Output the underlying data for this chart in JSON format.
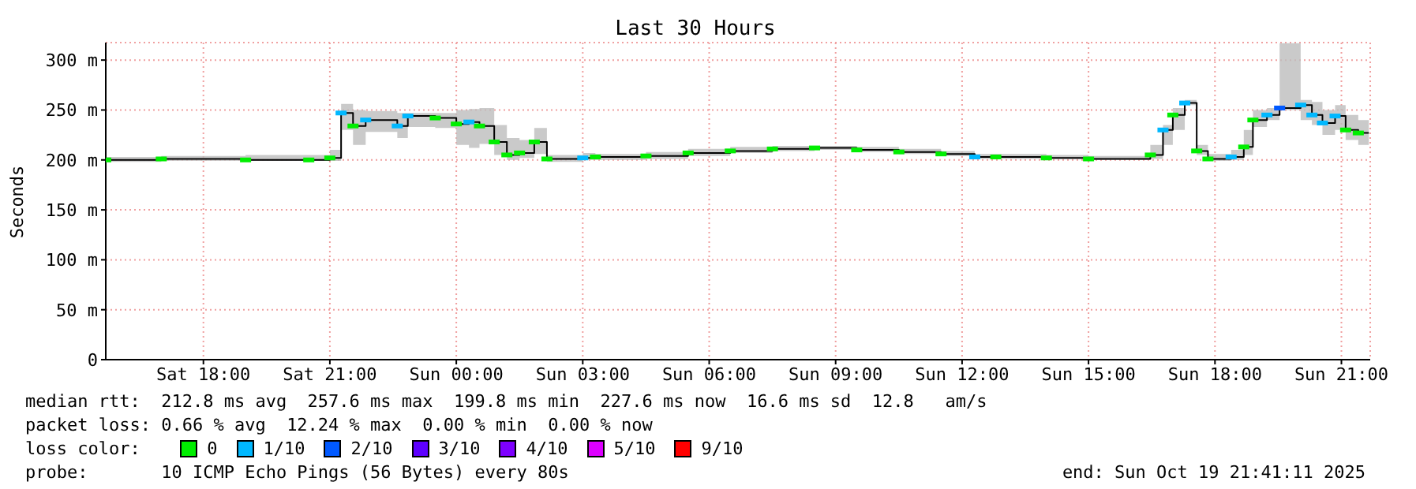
{
  "chart_data": {
    "type": "step",
    "title": "Last 30 Hours",
    "ylabel": "Seconds",
    "xlim": [
      "--10-18T15:41",
      "--10-19T21:41"
    ],
    "xticks": [
      {
        "value": "--10-18T18:00",
        "label": "Sat 18:00"
      },
      {
        "value": "--10-18T21:00",
        "label": "Sat 21:00"
      },
      {
        "value": "--10-19T00:00",
        "label": "Sun 00:00"
      },
      {
        "value": "--10-19T03:00",
        "label": "Sun 03:00"
      },
      {
        "value": "--10-19T06:00",
        "label": "Sun 06:00"
      },
      {
        "value": "--10-19T09:00",
        "label": "Sun 09:00"
      },
      {
        "value": "--10-19T12:00",
        "label": "Sun 12:00"
      },
      {
        "value": "--10-19T15:00",
        "label": "Sun 15:00"
      },
      {
        "value": "--10-19T18:00",
        "label": "Sun 18:00"
      },
      {
        "value": "--10-19T21:00",
        "label": "Sun 21:00"
      }
    ],
    "ylim": [
      0,
      317.5
    ],
    "yticks": [
      0,
      {
        "value": 50,
        "label": "50 m"
      },
      {
        "value": 100,
        "label": "100 m"
      },
      {
        "value": 150,
        "label": "150 m"
      },
      {
        "value": 200,
        "label": "200 m"
      },
      {
        "value": 250,
        "label": "250 m"
      },
      {
        "value": 300,
        "label": "300 m"
      }
    ],
    "grid": true,
    "legend": "bottom",
    "legend_title": "loss color:",
    "series": [
      {
        "color": "#000000",
        "x": [
          "--10-18T15:41",
          "--10-18T17:00",
          "--10-18T19:00",
          "--10-18T20:30",
          "--10-18T21:00",
          "--10-18T21:16",
          "--10-18T21:33",
          "--10-18T21:51",
          "--10-18T22:36",
          "--10-18T22:51",
          "--10-18T23:30",
          "--10-19T00:00",
          "--10-19T00:18",
          "--10-19T00:33",
          "--10-19T00:54",
          "--10-19T01:12",
          "--10-19T01:30",
          "--10-19T01:51",
          "--10-19T02:09",
          "--10-19T03:00",
          "--10-19T03:18",
          "--10-19T04:30",
          "--10-19T05:30",
          "--10-19T06:30",
          "--10-19T07:30",
          "--10-19T08:30",
          "--10-19T09:30",
          "--10-19T10:30",
          "--10-19T11:30",
          "--10-19T12:18",
          "--10-19T12:48",
          "--10-19T14:00",
          "--10-19T15:00",
          "--10-19T16:28",
          "--10-19T16:46",
          "--10-19T17:00",
          "--10-19T17:17",
          "--10-19T17:34",
          "--10-19T17:50",
          "--10-19T18:23",
          "--10-19T18:41",
          "--10-19T18:54",
          "--10-19T19:14",
          "--10-19T19:32",
          "--10-19T20:02",
          "--10-19T20:18",
          "--10-19T20:33",
          "--10-19T20:51",
          "--10-19T21:06",
          "--10-19T21:24",
          "--10-19T21:39"
        ],
        "values": [
          200,
          201,
          200,
          200,
          202,
          247,
          234,
          240,
          234,
          244,
          242,
          236,
          238,
          234,
          218,
          205,
          207,
          218,
          201,
          202,
          203,
          204,
          207,
          209,
          211,
          212,
          210,
          208,
          206,
          203,
          203,
          202,
          201,
          205,
          230,
          245,
          257,
          209,
          201,
          203,
          213,
          240,
          245,
          252,
          255,
          245,
          237,
          244,
          230,
          227,
          227
        ],
        "lower": [
          198,
          199,
          199,
          199,
          199,
          230,
          215,
          228,
          222,
          233,
          232,
          215,
          212,
          216,
          205,
          200,
          202,
          206,
          198,
          200,
          200,
          201,
          204,
          207,
          209,
          210,
          208,
          206,
          204,
          201,
          201,
          201,
          200,
          201,
          215,
          230,
          255,
          205,
          199,
          200,
          205,
          233,
          240,
          250,
          240,
          235,
          225,
          230,
          220,
          215,
          215
        ],
        "upper": [
          203,
          204,
          205,
          205,
          210,
          256,
          250,
          249,
          247,
          247,
          247,
          250,
          251,
          252,
          235,
          222,
          220,
          232,
          205,
          207,
          206,
          208,
          211,
          213,
          214,
          214,
          213,
          211,
          209,
          206,
          206,
          205,
          204,
          215,
          235,
          252,
          260,
          215,
          206,
          210,
          230,
          250,
          252,
          317,
          260,
          258,
          250,
          255,
          245,
          240,
          240
        ]
      },
      {
        "type": "scatter",
        "name": "0",
        "color": "#00ee00",
        "x": [
          "--10-18T15:41",
          "--10-18T17:00",
          "--10-18T19:00",
          "--10-18T20:30",
          "--10-18T21:00",
          "--10-18T21:33",
          "--10-18T23:30",
          "--10-19T00:00",
          "--10-19T00:33",
          "--10-19T00:54",
          "--10-19T01:12",
          "--10-19T01:30",
          "--10-19T01:51",
          "--10-19T02:09",
          "--10-19T03:18",
          "--10-19T04:30",
          "--10-19T05:30",
          "--10-19T06:30",
          "--10-19T07:30",
          "--10-19T08:30",
          "--10-19T09:30",
          "--10-19T10:30",
          "--10-19T11:30",
          "--10-19T12:48",
          "--10-19T14:00",
          "--10-19T15:00",
          "--10-19T16:28",
          "--10-19T17:00",
          "--10-19T17:34",
          "--10-19T17:50",
          "--10-19T18:41",
          "--10-19T18:54",
          "--10-19T21:06",
          "--10-19T21:24"
        ],
        "values": [
          200,
          201,
          200,
          200,
          202,
          234,
          242,
          236,
          234,
          218,
          205,
          207,
          218,
          201,
          203,
          204,
          207,
          209,
          211,
          212,
          210,
          208,
          206,
          203,
          202,
          201,
          205,
          245,
          209,
          201,
          213,
          240,
          230,
          227
        ]
      },
      {
        "type": "scatter",
        "name": "1/10",
        "color": "#00b8ff",
        "x": [
          "--10-18T21:16",
          "--10-18T21:51",
          "--10-18T22:36",
          "--10-18T22:51",
          "--10-19T00:18",
          "--10-19T03:00",
          "--10-19T12:18",
          "--10-19T16:46",
          "--10-19T17:17",
          "--10-19T18:23",
          "--10-19T19:14",
          "--10-19T20:02",
          "--10-19T20:18",
          "--10-19T20:33",
          "--10-19T20:51"
        ],
        "values": [
          247,
          240,
          234,
          244,
          238,
          202,
          203,
          230,
          257,
          203,
          245,
          255,
          245,
          237,
          244
        ]
      },
      {
        "type": "scatter",
        "name": "2/10",
        "color": "#0059ff",
        "x": [
          "--10-19T19:32"
        ],
        "values": [
          252
        ]
      },
      {
        "type": "scatter",
        "name": "3/10",
        "color": "#5e00ff"
      },
      {
        "type": "scatter",
        "name": "4/10",
        "color": "#7e00ff"
      },
      {
        "type": "scatter",
        "name": "5/10",
        "color": "#dd00ff"
      },
      {
        "type": "scatter",
        "name": "9/10",
        "color": "#ff0000"
      }
    ],
    "annotations": [
      "median rtt:  212.8 ms avg  257.6 ms max  199.8 ms min  227.6 ms now  16.6 ms sd  12.8   am/s",
      "packet loss: 0.66 % avg  12.24 % max  0.00 % min  0.00 % now",
      "probe:       10 ICMP Echo Pings (56 Bytes) every 80s",
      "end: Sun Oct 19 21:41:11 2025"
    ]
  }
}
